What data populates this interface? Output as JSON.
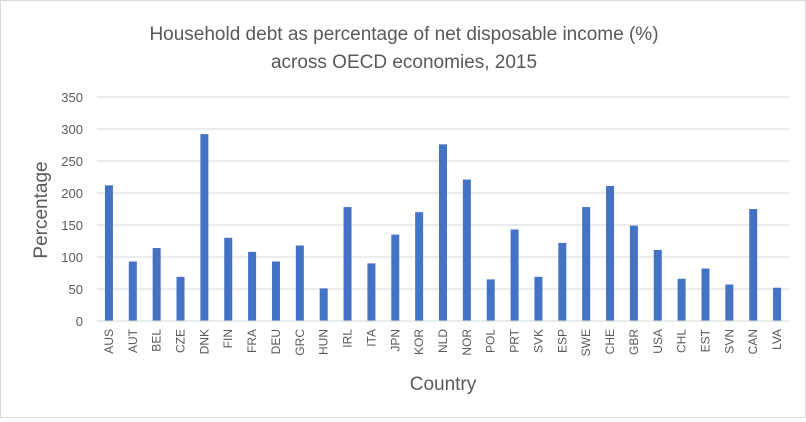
{
  "chart_data": {
    "type": "bar",
    "title": [
      "Household debt as percentage of net disposable income (%)",
      "across OECD economies, 2015"
    ],
    "xlabel": "Country",
    "ylabel": "Percentage",
    "ylim": [
      0,
      350
    ],
    "yticks": [
      0,
      50,
      100,
      150,
      200,
      250,
      300,
      350
    ],
    "grid": true,
    "legend": "none",
    "bar_color": "#4472C4",
    "categories": [
      "AUS",
      "AUT",
      "BEL",
      "CZE",
      "DNK",
      "FIN",
      "FRA",
      "DEU",
      "GRC",
      "HUN",
      "IRL",
      "ITA",
      "JPN",
      "KOR",
      "NLD",
      "NOR",
      "POL",
      "PRT",
      "SVK",
      "ESP",
      "SWE",
      "CHE",
      "GBR",
      "USA",
      "CHL",
      "EST",
      "SVN",
      "CAN",
      "LVA"
    ],
    "values": [
      212,
      93,
      114,
      69,
      292,
      130,
      108,
      93,
      118,
      51,
      178,
      90,
      135,
      170,
      276,
      221,
      65,
      143,
      69,
      122,
      178,
      211,
      149,
      111,
      66,
      82,
      57,
      175,
      52
    ]
  }
}
